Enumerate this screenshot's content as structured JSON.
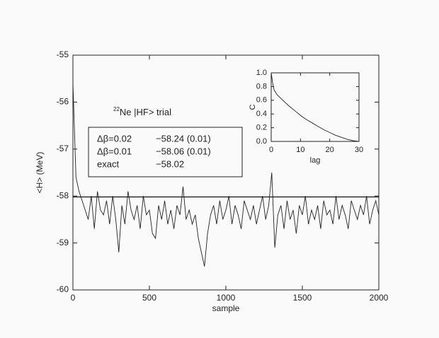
{
  "chart_data": [
    {
      "type": "line",
      "xlabel": "sample",
      "ylabel": "<H> (MeV)",
      "annotation": {
        "superscript": "22",
        "text": "Ne |HF> trial"
      },
      "legend_box": [
        {
          "label": "Δβ=0.02",
          "value": "−58.24 (0.01)"
        },
        {
          "label": "Δβ=0.01",
          "value": "−58.06 (0.01)"
        },
        {
          "label": "exact",
          "value": "−58.02"
        }
      ],
      "hline": -58.02,
      "xlim": [
        0,
        2000
      ],
      "ylim": [
        -60,
        -55
      ],
      "xticks": [
        0,
        500,
        1000,
        1500,
        2000
      ],
      "yticks": [
        -60,
        -59,
        -58,
        -57,
        -56,
        -55
      ],
      "color": "#222222",
      "x": [
        0,
        20,
        40,
        60,
        80,
        100,
        120,
        140,
        160,
        180,
        200,
        220,
        240,
        260,
        280,
        300,
        320,
        340,
        360,
        380,
        400,
        420,
        440,
        460,
        480,
        500,
        520,
        540,
        560,
        580,
        600,
        620,
        640,
        660,
        680,
        700,
        720,
        740,
        760,
        780,
        800,
        820,
        840,
        860,
        880,
        900,
        920,
        940,
        960,
        980,
        1000,
        1020,
        1040,
        1060,
        1080,
        1100,
        1120,
        1140,
        1160,
        1180,
        1200,
        1220,
        1240,
        1260,
        1280,
        1300,
        1320,
        1340,
        1360,
        1380,
        1400,
        1420,
        1440,
        1460,
        1480,
        1500,
        1520,
        1540,
        1560,
        1580,
        1600,
        1620,
        1640,
        1660,
        1680,
        1700,
        1720,
        1740,
        1760,
        1780,
        1800,
        1820,
        1840,
        1860,
        1880,
        1900,
        1920,
        1940,
        1960,
        1980,
        2000
      ],
      "values": [
        -55.6,
        -57.6,
        -57.9,
        -58.1,
        -58.3,
        -58.5,
        -58.0,
        -58.7,
        -57.9,
        -58.3,
        -58.4,
        -58.1,
        -58.6,
        -58.0,
        -58.5,
        -59.2,
        -58.2,
        -58.6,
        -57.9,
        -58.3,
        -58.5,
        -58.2,
        -58.7,
        -58.0,
        -58.4,
        -58.3,
        -58.8,
        -58.9,
        -58.2,
        -58.5,
        -58.1,
        -58.6,
        -58.3,
        -58.7,
        -58.2,
        -58.4,
        -57.8,
        -58.5,
        -58.3,
        -58.6,
        -58.4,
        -58.9,
        -59.2,
        -59.5,
        -58.8,
        -58.4,
        -58.2,
        -58.6,
        -58.1,
        -58.5,
        -58.3,
        -58.0,
        -58.6,
        -58.2,
        -58.4,
        -58.7,
        -58.1,
        -58.3,
        -58.5,
        -58.2,
        -58.6,
        -58.3,
        -58.0,
        -58.5,
        -58.2,
        -57.5,
        -59.1,
        -58.4,
        -58.2,
        -58.7,
        -58.1,
        -58.5,
        -58.3,
        -58.8,
        -58.2,
        -58.4,
        -58.0,
        -58.6,
        -58.3,
        -58.5,
        -58.2,
        -58.7,
        -58.1,
        -58.4,
        -58.3,
        -58.6,
        -58.0,
        -58.5,
        -58.2,
        -58.4,
        -58.7,
        -58.1,
        -58.3,
        -58.5,
        -58.2,
        -58.4,
        -58.0,
        -58.6,
        -58.3,
        -58.1,
        -58.4
      ]
    },
    {
      "type": "line",
      "xlabel": "lag",
      "ylabel": "C",
      "xlim": [
        0,
        30
      ],
      "ylim": [
        0,
        1
      ],
      "xticks": [
        0,
        10,
        20,
        30
      ],
      "yticks": [
        {
          "value": 0,
          "label": "0.0"
        },
        0.2,
        0.4,
        0.6,
        0.8,
        {
          "value": 1,
          "label": "1.0"
        }
      ],
      "color": "#222222",
      "x": [
        0,
        0.5,
        1,
        2,
        4,
        6,
        8,
        10,
        12,
        14,
        16,
        18,
        20,
        22,
        24,
        26,
        28,
        30
      ],
      "values": [
        1.0,
        0.85,
        0.75,
        0.68,
        0.6,
        0.52,
        0.45,
        0.38,
        0.32,
        0.27,
        0.22,
        0.17,
        0.13,
        0.09,
        0.06,
        0.03,
        0.01,
        0.0
      ]
    }
  ]
}
